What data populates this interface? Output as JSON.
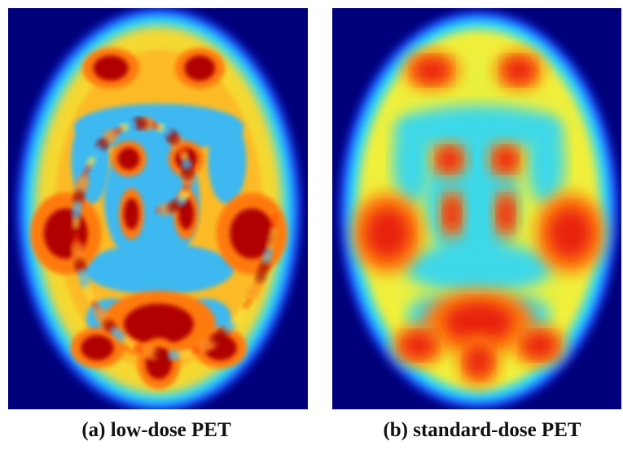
{
  "panels": [
    {
      "caption": "(a) low-dose PET"
    },
    {
      "caption": "(b) standard-dose PET"
    }
  ]
}
